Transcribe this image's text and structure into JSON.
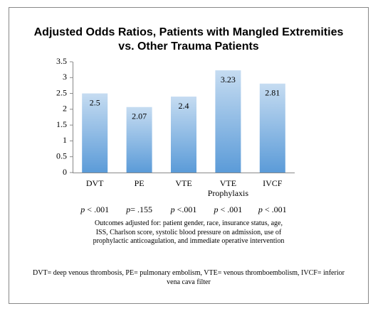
{
  "chart_data": {
    "type": "bar",
    "title": "Adjusted Odds Ratios, Patients with Mangled Extremities vs. Other Trauma Patients",
    "categories": [
      "DVT",
      "PE",
      "VTE",
      "VTE Prophylaxis",
      "IVCF"
    ],
    "values": [
      2.5,
      2.07,
      2.4,
      3.23,
      2.81
    ],
    "color": "#5b9bd8",
    "ylim": [
      0,
      3.5
    ],
    "yticks": [
      0,
      0.5,
      1,
      1.5,
      2,
      2.5,
      3,
      3.5
    ],
    "grid": false,
    "p_values": [
      "p < .001",
      "p= .155",
      "p <.001",
      "p < .001",
      "p < .001"
    ],
    "note": "Outcomes adjusted for: patient gender, race, insurance status, age, ISS, Charlson score, systolic blood pressure on admission, use of prophylactic anticoagulation, and immediate operative intervention",
    "footnote": "DVT= deep venous thrombosis, PE= pulmonary embolism, VTE= venous thromboembolism, IVCF= inferior vena cava filter"
  }
}
